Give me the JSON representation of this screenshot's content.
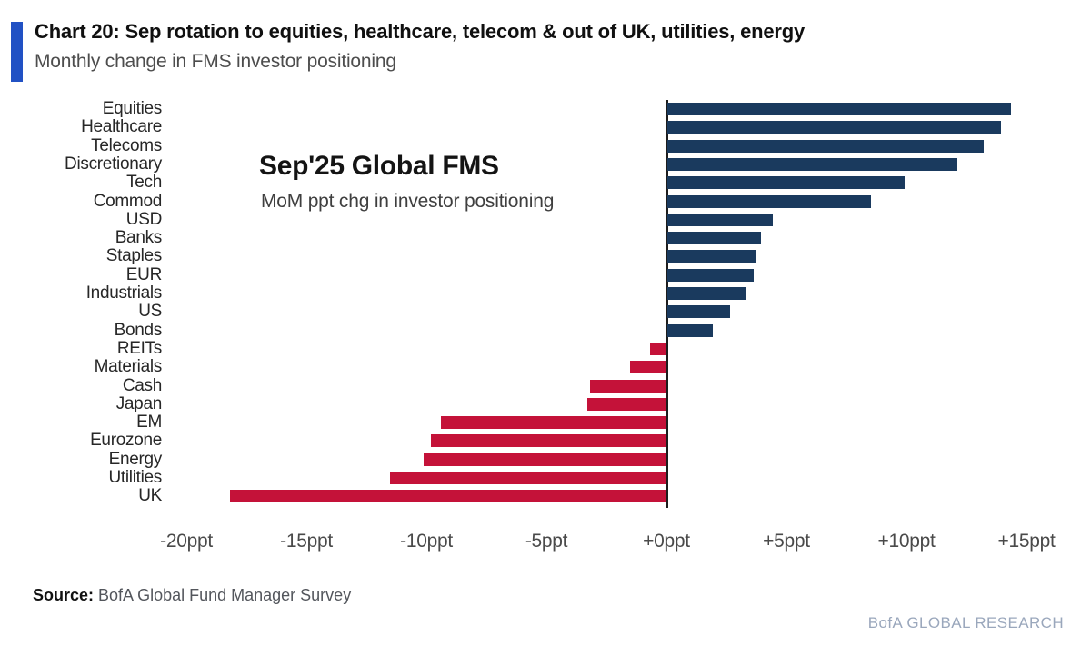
{
  "header": {
    "title": "Chart 20: Sep rotation to equities, healthcare, telecom & out of UK, utilities, energy",
    "subtitle": "Monthly change in FMS investor positioning"
  },
  "annotation": {
    "title": "Sep'25 Global FMS",
    "subtitle": "MoM ppt chg in investor positioning"
  },
  "chart_data": {
    "type": "bar",
    "orientation": "horizontal",
    "title": "Sep'25 Global FMS",
    "subtitle": "MoM ppt chg in investor positioning",
    "unit": "ppt",
    "categories": [
      "Equities",
      "Healthcare",
      "Telecoms",
      "Discretionary",
      "Tech",
      "Commod",
      "USD",
      "Banks",
      "Staples",
      "EUR",
      "Industrials",
      "US",
      "Bonds",
      "REITs",
      "Materials",
      "Cash",
      "Japan",
      "EM",
      "Eurozone",
      "Energy",
      "Utilities",
      "UK"
    ],
    "values": [
      14.3,
      13.9,
      13.2,
      12.1,
      9.9,
      8.5,
      4.4,
      3.9,
      3.7,
      3.6,
      3.3,
      2.6,
      1.9,
      -0.7,
      -1.5,
      -3.2,
      -3.3,
      -9.4,
      -9.8,
      -10.1,
      -11.5,
      -18.2
    ],
    "x_ticks": [
      {
        "label": "-20ppt",
        "value": -20
      },
      {
        "label": "-15ppt",
        "value": -15
      },
      {
        "label": "-10ppt",
        "value": -10
      },
      {
        "label": "-5ppt",
        "value": -5
      },
      {
        "label": "+0ppt",
        "value": 0
      },
      {
        "label": "+5ppt",
        "value": 5
      },
      {
        "label": "+10ppt",
        "value": 10
      },
      {
        "label": "+15ppt",
        "value": 15
      }
    ],
    "xlim": [
      -21,
      17
    ],
    "grid": false,
    "legend": "none",
    "colors": {
      "positive": "#1A3A5E",
      "negative": "#C41239"
    }
  },
  "footer": {
    "source_label": "Source:",
    "source_text": " BofA Global Fund Manager Survey",
    "brand": "BofA GLOBAL RESEARCH"
  },
  "style": {
    "accent_color": "#2151C4",
    "zero_line_color": "#1d1d1d"
  }
}
